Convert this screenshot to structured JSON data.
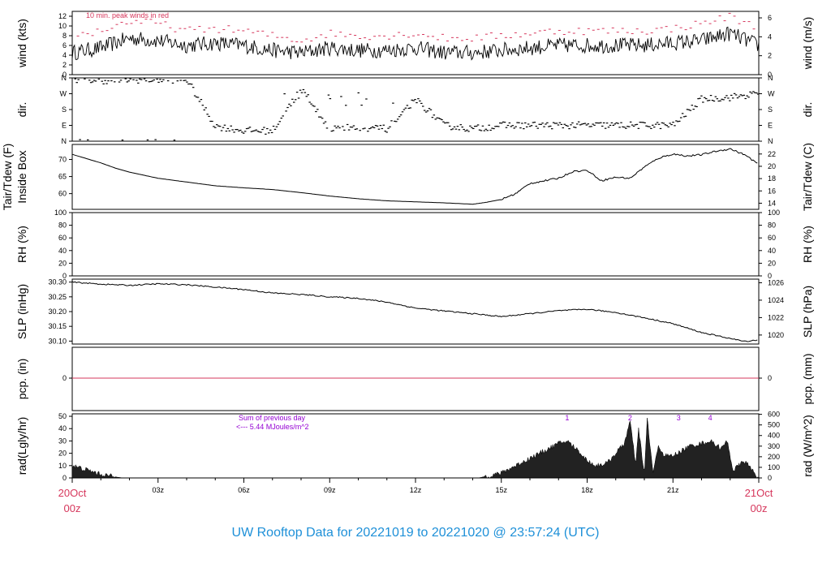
{
  "title": "UW Rooftop Data for 20221019  to  20221020 @ 23:57:24  (UTC)",
  "colors": {
    "title": "#1e90d8",
    "peak": "#d6375c",
    "precip_line": "#d6375c",
    "annotation": "#9400d3",
    "date_label": "#d6375c",
    "trace": "#000000"
  },
  "x_axis": {
    "start_date": "20Oct",
    "start_hour": "00z",
    "end_date": "21Oct",
    "end_hour": "00z",
    "ticks": [
      "03z",
      "06z",
      "09z",
      "12z",
      "15z",
      "18z",
      "21z"
    ]
  },
  "annotations": {
    "peak_note": "10 min. peak winds in red",
    "sum_line1": "Sum of previous day",
    "sum_line2": "<--- 5.44 MJoules/m^2",
    "markers": [
      "1",
      "2",
      "3",
      "4"
    ]
  },
  "chart_data": [
    {
      "type": "line",
      "id": "wind",
      "ylabel": "wind (kts)",
      "ylabel_right": "wind (m/s)",
      "ylim": [
        0,
        13
      ],
      "yticks": [
        "0",
        "2",
        "4",
        "6",
        "8",
        "10",
        "12"
      ],
      "yticks_right": [
        "0",
        "2",
        "4",
        "6"
      ],
      "series": [
        {
          "name": "wind",
          "x": [
            0,
            1,
            2,
            3,
            4,
            5,
            6,
            7,
            8,
            9,
            10,
            11,
            12,
            13,
            14,
            15,
            16,
            17,
            18,
            19,
            20,
            21,
            22,
            23,
            24
          ],
          "values": [
            4.5,
            5.5,
            7.5,
            7,
            6,
            6.5,
            6,
            5,
            4.5,
            5.5,
            5,
            5,
            5.5,
            4.5,
            4.5,
            5,
            5.5,
            6,
            6,
            6,
            6,
            6.5,
            7,
            8.5,
            6
          ]
        },
        {
          "name": "10 min. peak winds",
          "x": [
            0,
            1,
            2,
            3,
            4,
            5,
            6,
            7,
            8,
            9,
            10,
            11,
            12,
            13,
            14,
            15,
            16,
            17,
            18,
            19,
            20,
            21,
            22,
            23,
            24
          ],
          "values": [
            8,
            9,
            11,
            10.5,
            9,
            9.5,
            9,
            8,
            7,
            8.5,
            8,
            8,
            8.5,
            7.5,
            7.5,
            8,
            8.5,
            9,
            9,
            9,
            9,
            9.5,
            10.5,
            12,
            9.5
          ]
        }
      ]
    },
    {
      "type": "scatter",
      "id": "dir",
      "ylabel": "dir.",
      "ylabel_right": "dir.",
      "yticks": [
        "N",
        "W",
        "S",
        "E",
        "N"
      ],
      "series": [
        {
          "name": "direction",
          "x": [
            0,
            1,
            2,
            3,
            4,
            5,
            6,
            7,
            8,
            9,
            10,
            11,
            12,
            13,
            14,
            15,
            16,
            17,
            18,
            19,
            20,
            21,
            22,
            23,
            24
          ],
          "values": [
            355,
            345,
            350,
            350,
            350,
            85,
            60,
            60,
            300,
            70,
            80,
            70,
            240,
            90,
            70,
            90,
            90,
            90,
            90,
            90,
            90,
            90,
            240,
            250,
            270
          ]
        }
      ]
    },
    {
      "type": "line",
      "id": "temp",
      "ylabel": "Tair/Tdew (F)",
      "ylabel2": "Inside Box",
      "ylabel_right": "Tair/Tdew (C)",
      "ylim": [
        55.4,
        74.4
      ],
      "yticks": [
        "60",
        "65",
        "70"
      ],
      "yticks_right": [
        "14",
        "16",
        "18",
        "20",
        "22"
      ],
      "series": [
        {
          "name": "Tair",
          "x": [
            0,
            1,
            1.5,
            2,
            3,
            4,
            5,
            6,
            7,
            8,
            9,
            10,
            11,
            12,
            13,
            14,
            14.5,
            15,
            15.5,
            16,
            17,
            17.5,
            18,
            18.5,
            19,
            19.5,
            20,
            20.5,
            21,
            21.5,
            22,
            22.5,
            23,
            23.5,
            24
          ],
          "values": [
            71.5,
            69,
            67.5,
            66.3,
            64.5,
            63.4,
            62.3,
            61.7,
            61.2,
            60.3,
            59.3,
            58.5,
            57.9,
            57.6,
            57.3,
            56.9,
            57.5,
            58.3,
            60,
            63,
            64.5,
            66.5,
            66.8,
            63.8,
            64.8,
            64.5,
            67.8,
            70.4,
            71.6,
            71,
            71.4,
            72.4,
            73.1,
            71.4,
            68.6
          ]
        }
      ]
    },
    {
      "type": "line",
      "id": "rh",
      "ylabel": "RH (%)",
      "ylabel_right": "RH (%)",
      "ylim": [
        0,
        100
      ],
      "yticks": [
        "0",
        "20",
        "40",
        "60",
        "80",
        "100"
      ],
      "yticks_right": [
        "0",
        "20",
        "40",
        "60",
        "80",
        "100"
      ],
      "series": []
    },
    {
      "type": "line",
      "id": "slp",
      "ylabel": "SLP (inHg)",
      "ylabel_right": "SLP (hPa)",
      "ylim": [
        30.09,
        30.31
      ],
      "yticks": [
        "30.10",
        "30.15",
        "30.20",
        "30.25",
        "30.30"
      ],
      "yticks_right": [
        "1020",
        "1022",
        "1024",
        "1026"
      ],
      "series": [
        {
          "name": "SLP",
          "x": [
            0,
            1,
            2,
            3,
            4,
            5,
            6,
            7,
            8,
            9,
            10,
            11,
            12,
            13,
            14,
            15,
            16,
            17,
            18,
            19,
            20,
            21,
            22,
            23,
            23.5,
            24
          ],
          "values": [
            30.3,
            30.293,
            30.289,
            30.294,
            30.291,
            30.283,
            30.275,
            30.263,
            30.258,
            30.25,
            30.245,
            30.232,
            30.212,
            30.202,
            30.193,
            30.183,
            30.193,
            30.203,
            30.208,
            30.197,
            30.179,
            30.159,
            30.129,
            30.109,
            30.099,
            30.104
          ]
        }
      ]
    },
    {
      "type": "line",
      "id": "pcp",
      "ylabel": "pcp. (in)",
      "ylabel_right": "pcp. (mm)",
      "yticks": [
        "0"
      ],
      "yticks_right": [
        "0"
      ],
      "series": [
        {
          "name": "precipitation",
          "x": [
            0,
            24
          ],
          "values": [
            0,
            0
          ]
        }
      ]
    },
    {
      "type": "area",
      "id": "rad",
      "ylabel": "rad(Lgly/hr)",
      "ylabel_right": "rad (W/m^2)",
      "ylim": [
        0,
        52
      ],
      "yticks": [
        "0",
        "10",
        "20",
        "30",
        "40",
        "50"
      ],
      "yticks_right": [
        "0",
        "100",
        "200",
        "300",
        "400",
        "500",
        "600"
      ],
      "series": [
        {
          "name": "radiation",
          "x": [
            0,
            0.3,
            1,
            1.6,
            1.8,
            14.2,
            15,
            15.5,
            16,
            16.5,
            17,
            17.3,
            17.7,
            18,
            18.3,
            18.7,
            19,
            19.3,
            19.5,
            19.7,
            19.8,
            20,
            20.1,
            20.3,
            20.5,
            20.7,
            21,
            21.3,
            21.6,
            22,
            22.3,
            22.7,
            22.9,
            23.1,
            23.5,
            24
          ],
          "values": [
            10,
            8,
            3,
            0.5,
            0,
            0,
            4,
            10,
            16,
            22,
            28,
            30,
            22,
            14,
            10,
            12,
            20,
            28,
            46,
            10,
            40,
            2,
            48,
            4,
            26,
            18,
            18,
            22,
            26,
            28,
            30,
            24,
            30,
            6,
            14,
            0
          ]
        }
      ]
    }
  ]
}
